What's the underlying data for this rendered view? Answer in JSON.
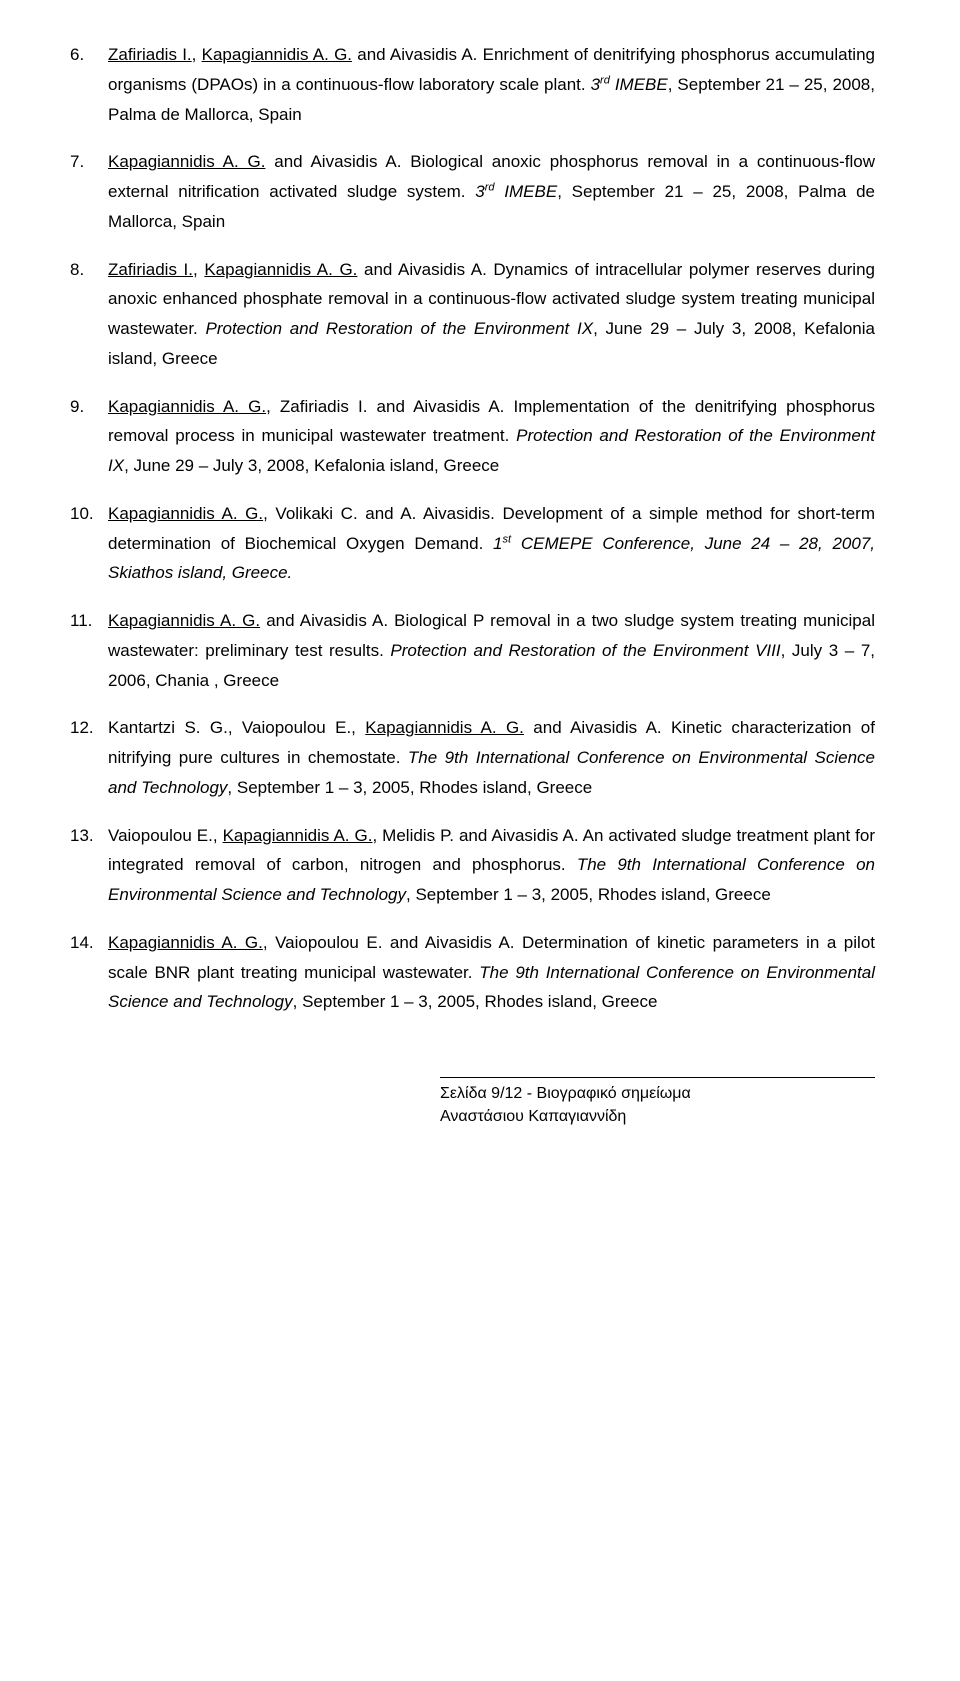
{
  "references": [
    {
      "segments": [
        {
          "t": "Zafiriadis I.",
          "u": true
        },
        {
          "t": ", "
        },
        {
          "t": "Kapagiannidis A. G.",
          "u": true
        },
        {
          "t": " and Aivasidis A. Enrichment of denitrifying phosphorus accumulating organisms (DPAOs) in a continuous-flow laboratory scale plant. "
        },
        {
          "t": "3",
          "i": true
        },
        {
          "t": "rd",
          "sup": true
        },
        {
          "t": " IMEBE",
          "i": true
        },
        {
          "t": ", September 21 – 25, 2008, Palma de Mallorca, Spain"
        }
      ]
    },
    {
      "segments": [
        {
          "t": "Kapagiannidis A. G.",
          "u": true
        },
        {
          "t": " and Aivasidis A. Biological anoxic phosphorus removal in a continuous-flow external nitrification activated sludge system. "
        },
        {
          "t": "3",
          "i": true
        },
        {
          "t": "rd",
          "sup": true
        },
        {
          "t": " IMEBE",
          "i": true
        },
        {
          "t": ", September 21 – 25, 2008, Palma de Mallorca, Spain"
        }
      ]
    },
    {
      "segments": [
        {
          "t": "Zafiriadis I.",
          "u": true
        },
        {
          "t": ", "
        },
        {
          "t": "Kapagiannidis A. G.",
          "u": true
        },
        {
          "t": " and Aivasidis A. Dynamics of intracellular polymer reserves during anoxic enhanced phosphate removal in a continuous-flow activated sludge system treating municipal wastewater. "
        },
        {
          "t": "Protection and Restoration of the Environment IX",
          "i": true
        },
        {
          "t": ", June 29  – July 3, 2008, Kefalonia island, Greece"
        }
      ]
    },
    {
      "segments": [
        {
          "t": "Kapagiannidis A. G.",
          "u": true
        },
        {
          "t": ", Zafiriadis I. and Aivasidis A. Implementation of the denitrifying phosphorus removal process in municipal wastewater treatment. "
        },
        {
          "t": "Protection and Restoration of the Environment IX",
          "i": true
        },
        {
          "t": ", June 29  – July 3, 2008, Kefalonia island, Greece"
        }
      ]
    },
    {
      "segments": [
        {
          "t": "Kapagiannidis A. G.",
          "u": true
        },
        {
          "t": ", Volikaki C. and A. Aivasidis. Development of a simple method for short-term determination of Biochemical Oxygen Demand. "
        },
        {
          "t": "1",
          "i": true
        },
        {
          "t": "st",
          "sup": true
        },
        {
          "t": " CEMEPE Conference, June 24 – 28, 2007, Skiathos island, Greece.",
          "i": true
        }
      ]
    },
    {
      "segments": [
        {
          "t": "Kapagiannidis A. G.",
          "u": true
        },
        {
          "t": " and Aivasidis A. Biological P removal in a two sludge system treating municipal wastewater: preliminary test results. "
        },
        {
          "t": "Protection and Restoration of the Environment VIII",
          "i": true
        },
        {
          "t": ", July 3 – 7, 2006, Chania , Greece"
        }
      ]
    },
    {
      "segments": [
        {
          "t": "Kantartzi S. G., Vaiopoulou E., "
        },
        {
          "t": "Kapagiannidis A. G.",
          "u": true
        },
        {
          "t": " and Aivasidis A. Kinetic characterization of nitrifying pure cultures in chemostate. "
        },
        {
          "t": "The 9th International Conference on Environmental Science and Technology",
          "i": true
        },
        {
          "t": ", September 1 – 3, 2005, Rhodes island, Greece"
        }
      ]
    },
    {
      "segments": [
        {
          "t": "Vaiopoulou E., "
        },
        {
          "t": "Kapagiannidis A. G.",
          "u": true
        },
        {
          "t": ", Melidis P. and Aivasidis A. An activated sludge treatment plant for integrated removal of carbon, nitrogen and phosphorus. "
        },
        {
          "t": "The 9th International Conference on Environmental Science and Technology",
          "i": true
        },
        {
          "t": ", September 1 – 3, 2005, Rhodes island, Greece"
        }
      ]
    },
    {
      "segments": [
        {
          "t": "Kapagiannidis A. G.",
          "u": true
        },
        {
          "t": ", Vaiopoulou E. and Aivasidis A. Determination of kinetic parameters in a pilot scale BNR plant treating municipal wastewater. "
        },
        {
          "t": "The 9th International Conference on Environmental Science and Technology",
          "i": true
        },
        {
          "t": ", September 1 – 3, 2005, Rhodes island, Greece"
        }
      ]
    }
  ],
  "footer": {
    "line1": "Σελίδα 9/12  - Βιογραφικό σημείωμα",
    "line2": "Αναστάσιου Καπαγιαννίδη"
  }
}
